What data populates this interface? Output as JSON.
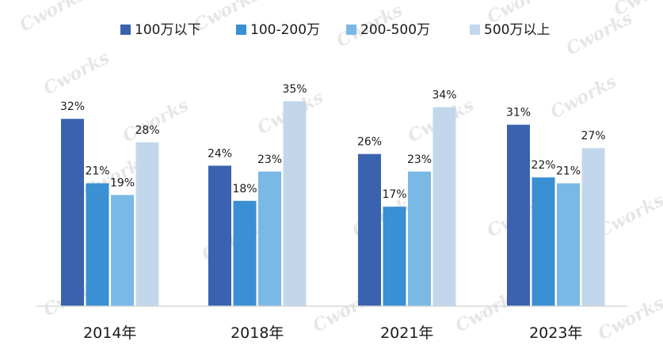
{
  "chart_data": {
    "type": "bar",
    "categories": [
      "2014年",
      "2018年",
      "2021年",
      "2023年"
    ],
    "series": [
      {
        "name": "100万以下",
        "values": [
          32,
          24,
          26,
          31
        ],
        "color": "#3a62ae"
      },
      {
        "name": "100-200万",
        "values": [
          21,
          18,
          17,
          22
        ],
        "color": "#3b8fd3"
      },
      {
        "name": "200-500万",
        "values": [
          19,
          23,
          23,
          21
        ],
        "color": "#7ab8e6"
      },
      {
        "name": "500万以上",
        "values": [
          28,
          35,
          34,
          27
        ],
        "color": "#c3d7ec"
      }
    ],
    "value_suffix": "%",
    "ylim": [
      0,
      35
    ],
    "grid": false,
    "legend_position": "top",
    "title": "",
    "xlabel": "",
    "ylabel": ""
  },
  "watermark": {
    "text": "Cworks"
  }
}
